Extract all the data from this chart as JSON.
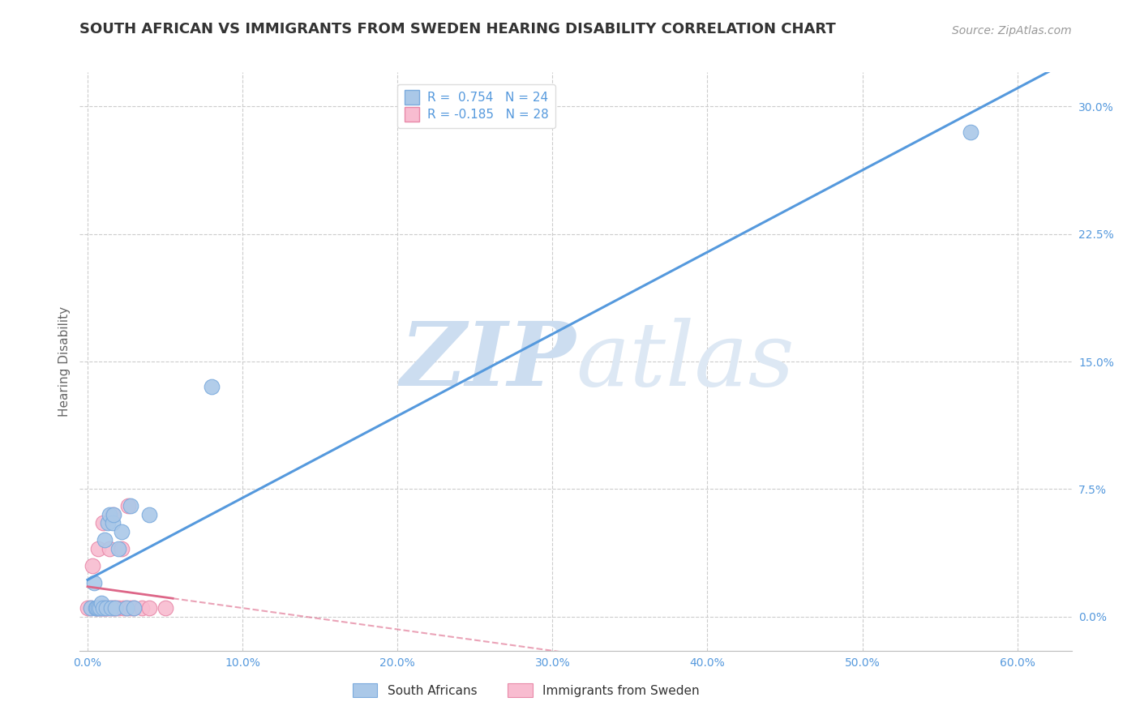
{
  "title": "SOUTH AFRICAN VS IMMIGRANTS FROM SWEDEN HEARING DISABILITY CORRELATION CHART",
  "source": "Source: ZipAtlas.com",
  "xlabel_ticks": [
    "0.0%",
    "10.0%",
    "20.0%",
    "30.0%",
    "40.0%",
    "50.0%",
    "60.0%"
  ],
  "xlabel_vals": [
    0.0,
    0.1,
    0.2,
    0.3,
    0.4,
    0.5,
    0.6
  ],
  "ylabel": "Hearing Disability",
  "ylabel_ticks": [
    "0.0%",
    "7.5%",
    "15.0%",
    "22.5%",
    "30.0%"
  ],
  "ylabel_vals": [
    0.0,
    0.075,
    0.15,
    0.225,
    0.3
  ],
  "xlim": [
    -0.005,
    0.635
  ],
  "ylim": [
    -0.02,
    0.32
  ],
  "south_africans_x": [
    0.002,
    0.004,
    0.005,
    0.006,
    0.007,
    0.008,
    0.009,
    0.01,
    0.011,
    0.012,
    0.013,
    0.014,
    0.015,
    0.016,
    0.017,
    0.018,
    0.02,
    0.022,
    0.025,
    0.028,
    0.03,
    0.04,
    0.08,
    0.57
  ],
  "south_africans_y": [
    0.005,
    0.02,
    0.005,
    0.005,
    0.005,
    0.005,
    0.008,
    0.005,
    0.045,
    0.005,
    0.055,
    0.06,
    0.005,
    0.055,
    0.06,
    0.005,
    0.04,
    0.05,
    0.005,
    0.065,
    0.005,
    0.06,
    0.135,
    0.285
  ],
  "immigrants_x": [
    0.0,
    0.002,
    0.003,
    0.005,
    0.006,
    0.007,
    0.008,
    0.009,
    0.01,
    0.01,
    0.011,
    0.012,
    0.013,
    0.014,
    0.015,
    0.016,
    0.017,
    0.018,
    0.02,
    0.022,
    0.023,
    0.025,
    0.026,
    0.028,
    0.03,
    0.035,
    0.04,
    0.05
  ],
  "immigrants_y": [
    0.005,
    0.005,
    0.03,
    0.005,
    0.005,
    0.04,
    0.005,
    0.005,
    0.055,
    0.005,
    0.005,
    0.005,
    0.005,
    0.04,
    0.005,
    0.06,
    0.005,
    0.005,
    0.005,
    0.04,
    0.005,
    0.005,
    0.065,
    0.005,
    0.005,
    0.005,
    0.005,
    0.005
  ],
  "sa_R": 0.754,
  "sa_N": 24,
  "imm_R": -0.185,
  "imm_N": 28,
  "sa_color": "#aac8e8",
  "sa_edge_color": "#7aaadd",
  "sa_line_color": "#5599dd",
  "imm_color": "#f8bcd0",
  "imm_edge_color": "#e888a8",
  "imm_line_color": "#dd6688",
  "watermark_zip": "ZIP",
  "watermark_atlas": "atlas",
  "watermark_color": "#ccddf0",
  "title_fontsize": 13,
  "source_fontsize": 10,
  "legend_fontsize": 11,
  "tick_fontsize": 10,
  "ylabel_fontsize": 11
}
